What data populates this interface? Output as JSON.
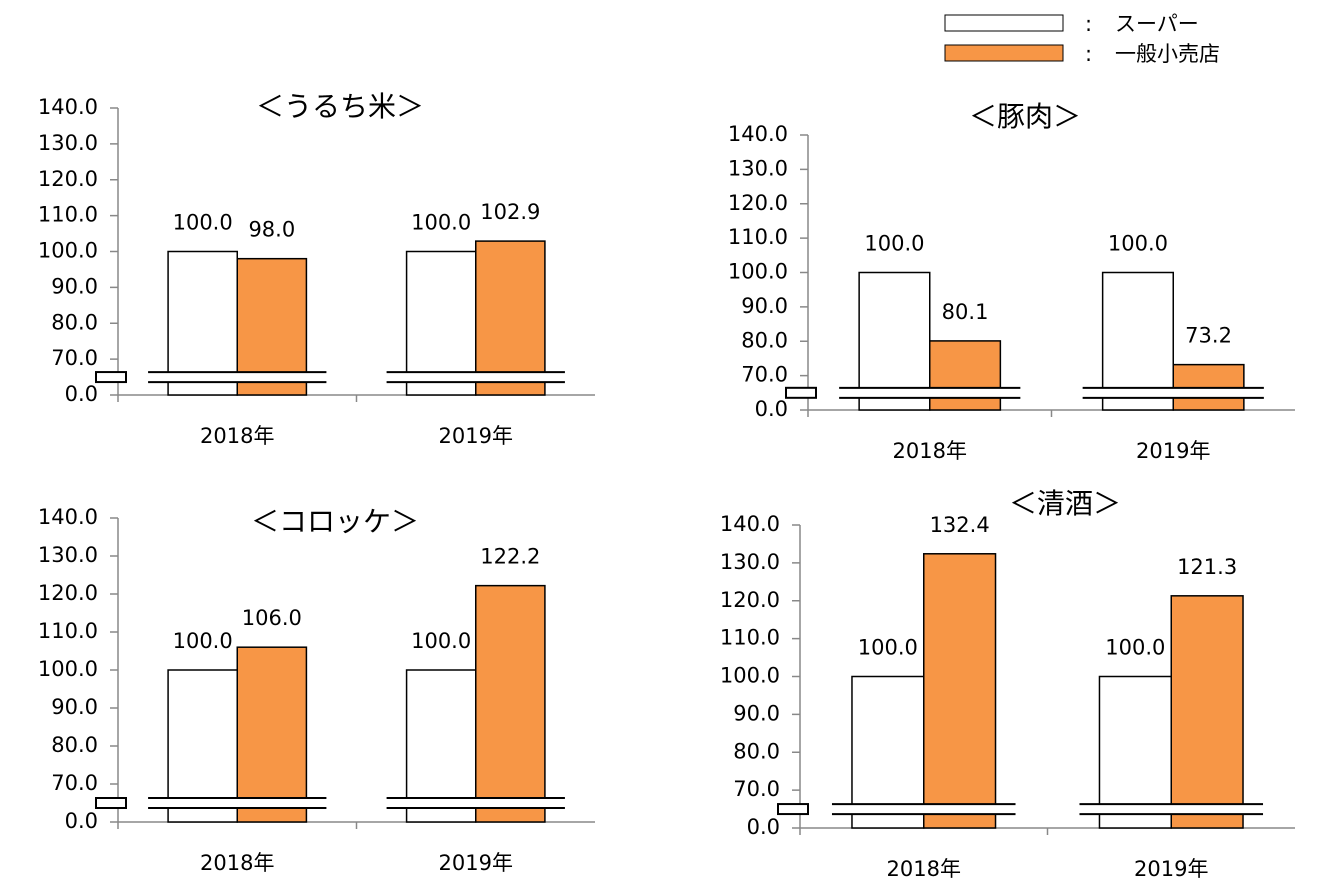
{
  "chart_data": [
    {
      "type": "bar",
      "title": "＜うるち米＞",
      "categories": [
        "2018年",
        "2019年"
      ],
      "series": [
        {
          "name": "スーパー",
          "color": "#ffffff",
          "values": [
            100,
            100
          ],
          "value_labels": [
            "100.0",
            "100.0"
          ]
        },
        {
          "name": "一般小売店",
          "color": "#f79646",
          "values": [
            98.0,
            102.9
          ],
          "value_labels": [
            "98.0",
            "102.9"
          ]
        }
      ],
      "yticks": [
        {
          "value": 0,
          "label": "0.0"
        },
        {
          "value": 70,
          "label": "70.0"
        },
        {
          "value": 80,
          "label": "80.0"
        },
        {
          "value": 90,
          "label": "90.0"
        },
        {
          "value": 100,
          "label": "100.0"
        },
        {
          "value": 110,
          "label": "110.0"
        },
        {
          "value": 120,
          "label": "120.0"
        },
        {
          "value": 130,
          "label": "130.0"
        },
        {
          "value": 140,
          "label": "140.0"
        }
      ],
      "ylim": [
        0,
        140
      ]
    },
    {
      "type": "bar",
      "title": "＜豚肉＞",
      "categories": [
        "2018年",
        "2019年"
      ],
      "series": [
        {
          "name": "スーパー",
          "color": "#ffffff",
          "values": [
            100,
            100
          ],
          "value_labels": [
            "100.0",
            "100.0"
          ]
        },
        {
          "name": "一般小売店",
          "color": "#f79646",
          "values": [
            80.1,
            73.2
          ],
          "value_labels": [
            "80.1",
            "73.2"
          ]
        }
      ],
      "yticks": [
        {
          "value": 0,
          "label": "0.0"
        },
        {
          "value": 70,
          "label": "70.0"
        },
        {
          "value": 80,
          "label": "80.0"
        },
        {
          "value": 90,
          "label": "90.0"
        },
        {
          "value": 100,
          "label": "100.0"
        },
        {
          "value": 110,
          "label": "110.0"
        },
        {
          "value": 120,
          "label": "120.0"
        },
        {
          "value": 130,
          "label": "130.0"
        },
        {
          "value": 140,
          "label": "140.0"
        }
      ],
      "ylim": [
        0,
        140
      ]
    },
    {
      "type": "bar",
      "title": "＜コロッケ＞",
      "categories": [
        "2018年",
        "2019年"
      ],
      "series": [
        {
          "name": "スーパー",
          "color": "#ffffff",
          "values": [
            100,
            100
          ],
          "value_labels": [
            "100.0",
            "100.0"
          ]
        },
        {
          "name": "一般小売店",
          "color": "#f79646",
          "values": [
            106.0,
            122.2
          ],
          "value_labels": [
            "106.0",
            "122.2"
          ]
        }
      ],
      "yticks": [
        {
          "value": 0,
          "label": "0.0"
        },
        {
          "value": 70,
          "label": "70.0"
        },
        {
          "value": 80,
          "label": "80.0"
        },
        {
          "value": 90,
          "label": "90.0"
        },
        {
          "value": 100,
          "label": "100.0"
        },
        {
          "value": 110,
          "label": "110.0"
        },
        {
          "value": 120,
          "label": "120.0"
        },
        {
          "value": 130,
          "label": "130.0"
        },
        {
          "value": 140,
          "label": "140.0"
        }
      ],
      "ylim": [
        0,
        140
      ]
    },
    {
      "type": "bar",
      "title": "＜清酒＞",
      "categories": [
        "2018年",
        "2019年"
      ],
      "series": [
        {
          "name": "スーパー",
          "color": "#ffffff",
          "values": [
            100,
            100
          ],
          "value_labels": [
            "100.0",
            "100.0"
          ]
        },
        {
          "name": "一般小売店",
          "color": "#f79646",
          "values": [
            132.4,
            121.3
          ],
          "value_labels": [
            "132.4",
            "121.3"
          ]
        }
      ],
      "yticks": [
        {
          "value": 0,
          "label": "0.0"
        },
        {
          "value": 70,
          "label": "70.0"
        },
        {
          "value": 80,
          "label": "80.0"
        },
        {
          "value": 90,
          "label": "90.0"
        },
        {
          "value": 100,
          "label": "100.0"
        },
        {
          "value": 110,
          "label": "110.0"
        },
        {
          "value": 120,
          "label": "120.0"
        },
        {
          "value": 130,
          "label": "130.0"
        },
        {
          "value": 140,
          "label": "140.0"
        }
      ],
      "ylim": [
        0,
        140
      ]
    }
  ]
}
